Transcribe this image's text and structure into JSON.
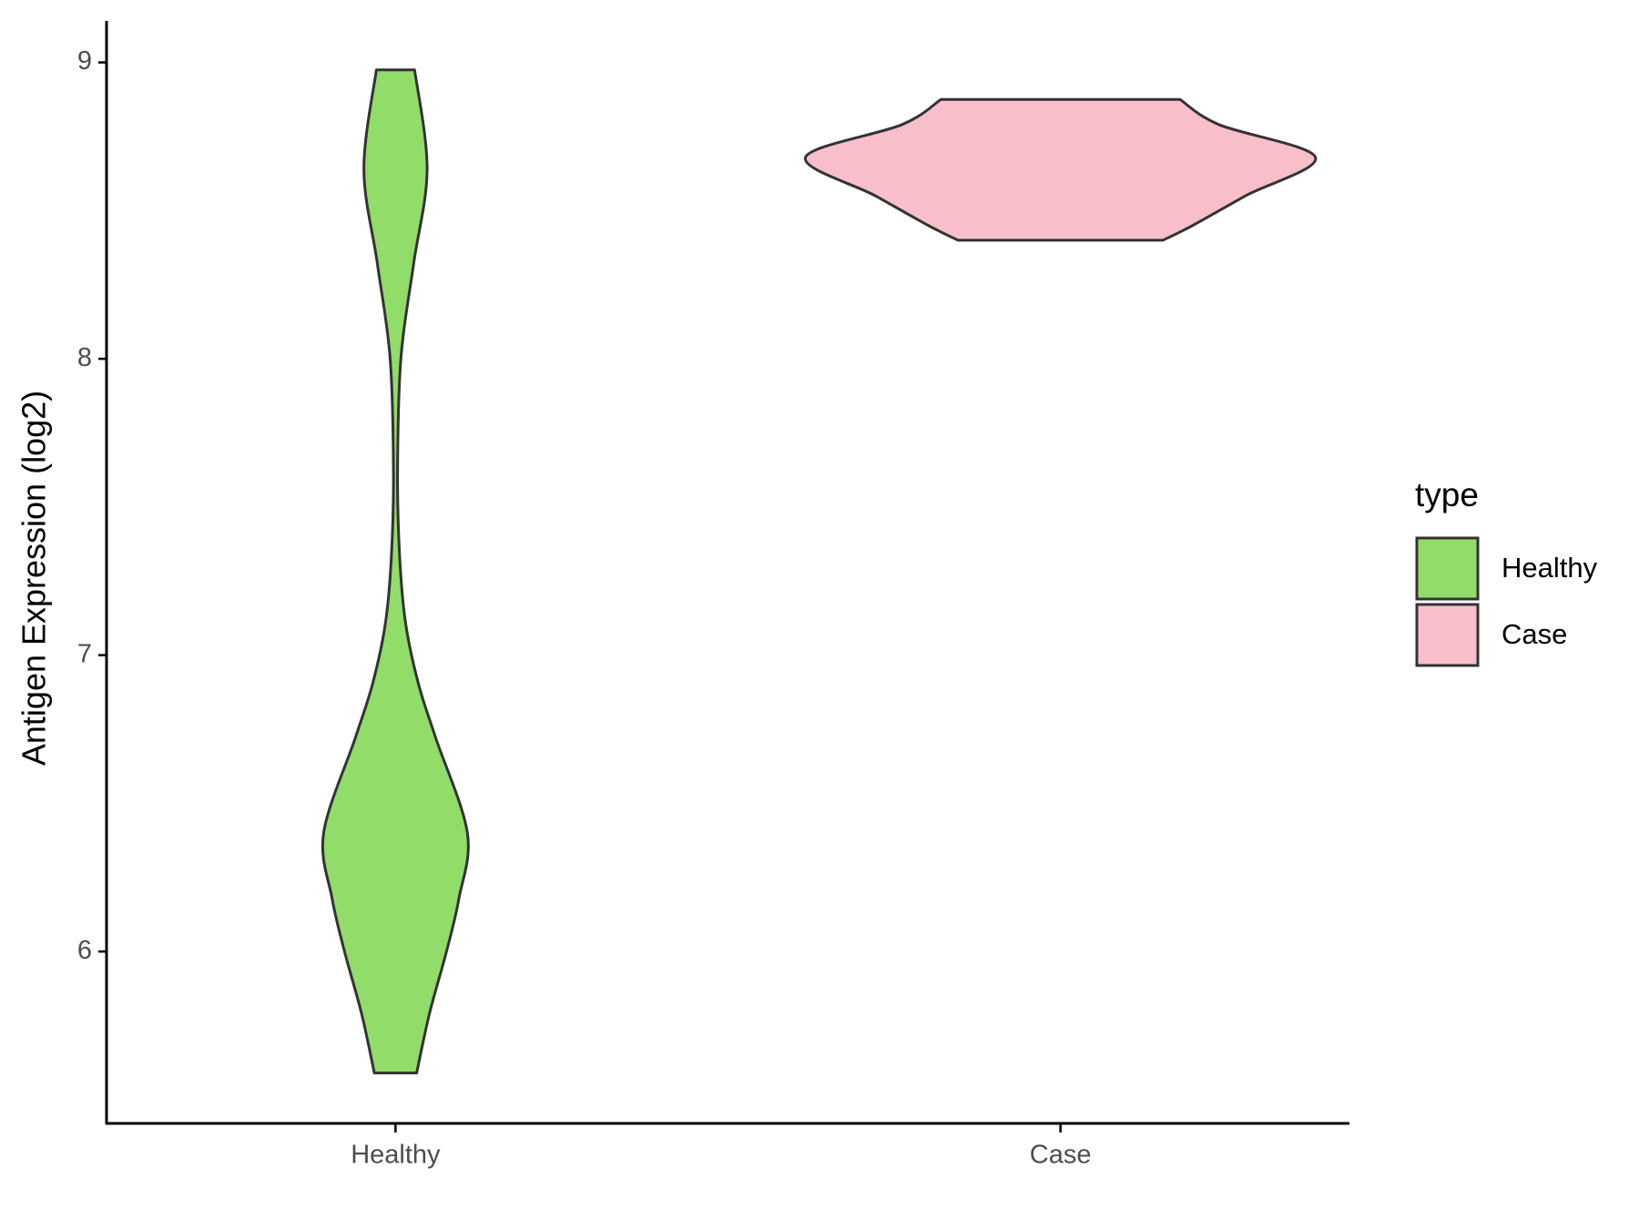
{
  "chart_data": {
    "type": "violin",
    "y_label": "Antigen Expression (log2)",
    "categories": [
      "Healthy",
      "Case"
    ],
    "ylim": [
      5.42,
      9.14
    ],
    "yticks": [
      6,
      7,
      8,
      9
    ],
    "grid": false,
    "legend_title": "type",
    "legend_position": "right",
    "series": [
      {
        "name": "Healthy",
        "color": "#92dc6a",
        "y": [
          5.59,
          5.79,
          6.0,
          6.18,
          6.4,
          6.72,
          6.9,
          7.1,
          7.32,
          7.61,
          8.0,
          8.32,
          8.64,
          8.975
        ],
        "width": [
          0.083,
          0.133,
          0.2,
          0.249,
          0.282,
          0.158,
          0.091,
          0.041,
          0.017,
          0.008,
          0.021,
          0.071,
          0.124,
          0.075
        ]
      },
      {
        "name": "Case",
        "color": "#f8bfcb",
        "y": [
          8.4,
          8.45,
          8.55,
          8.68,
          8.79,
          8.875
        ],
        "width": [
          0.402,
          0.519,
          0.726,
          1,
          0.622,
          0.469
        ]
      }
    ]
  }
}
